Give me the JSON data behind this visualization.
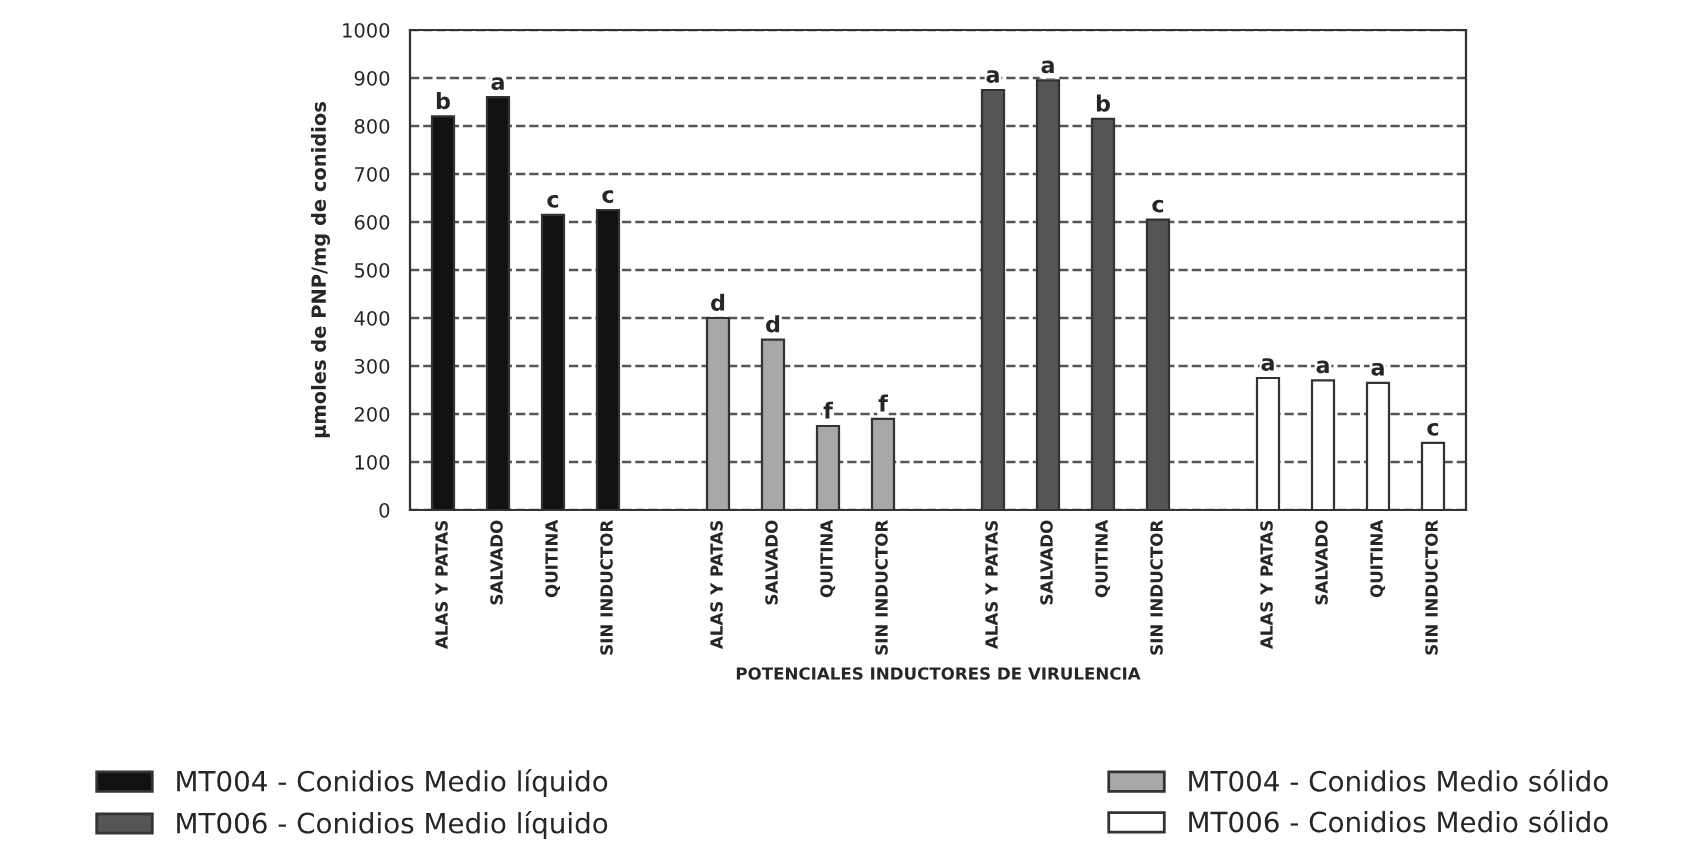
{
  "chart_data": {
    "type": "bar",
    "xlabel": "POTENCIALES INDUCTORES DE VIRULENCIA",
    "ylabel": "µmoles de PNP/mg de conidios",
    "categories": [
      "ALAS Y PATAS",
      "SALVADO",
      "QUITINA",
      "SIN INDUCTOR",
      null,
      "ALAS Y PATAS",
      "SALVADO",
      "QUITINA",
      "SIN INDUCTOR",
      null,
      "ALAS Y PATAS",
      "SALVADO",
      "QUITINA",
      "SIN INDUCTOR",
      null,
      "ALAS Y PATAS",
      "SALVADO",
      "QUITINA",
      "SIN INDUCTOR"
    ],
    "series": [
      {
        "name": "MT004 - Conidios Medio líquido",
        "color": "#111111",
        "values": [
          820,
          860,
          615,
          625,
          null,
          null,
          null,
          null,
          null,
          null,
          null,
          null,
          null,
          null,
          null,
          null,
          null,
          null,
          null
        ],
        "value_labels": [
          "b",
          "a",
          "c",
          "c",
          null,
          null,
          null,
          null,
          null,
          null,
          null,
          null,
          null,
          null,
          null,
          null,
          null,
          null,
          null
        ]
      },
      {
        "name": "MT006 - Conidios Medio líquido",
        "color": "#555555",
        "values": [
          null,
          null,
          null,
          null,
          null,
          null,
          null,
          null,
          null,
          null,
          875,
          895,
          815,
          605,
          null,
          null,
          null,
          null,
          null
        ],
        "value_labels": [
          null,
          null,
          null,
          null,
          null,
          null,
          null,
          null,
          null,
          null,
          "a",
          "a",
          "b",
          "c",
          null,
          null,
          null,
          null,
          null
        ]
      },
      {
        "name": "MT004 - Conidios Medio sólido",
        "color": "#a8a8a8",
        "values": [
          null,
          null,
          null,
          null,
          null,
          400,
          355,
          175,
          190,
          null,
          null,
          null,
          null,
          null,
          null,
          null,
          null,
          null,
          null
        ],
        "value_labels": [
          null,
          null,
          null,
          null,
          null,
          "d",
          "d",
          "f",
          "f",
          null,
          null,
          null,
          null,
          null,
          null,
          null,
          null,
          null,
          null
        ]
      },
      {
        "name": "MT006 - Conidios Medio sólido",
        "color": "#ffffff",
        "values": [
          null,
          null,
          null,
          null,
          null,
          null,
          null,
          null,
          null,
          null,
          null,
          null,
          null,
          null,
          null,
          275,
          270,
          265,
          140
        ],
        "value_labels": [
          null,
          null,
          null,
          null,
          null,
          null,
          null,
          null,
          null,
          null,
          null,
          null,
          null,
          null,
          null,
          "a",
          "a",
          "a",
          "c"
        ]
      }
    ],
    "ylim": [
      0,
      1000
    ],
    "yticks": [
      0,
      100,
      200,
      300,
      400,
      500,
      600,
      700,
      800,
      900,
      1000
    ],
    "grid": "y",
    "legend": "bottom"
  }
}
